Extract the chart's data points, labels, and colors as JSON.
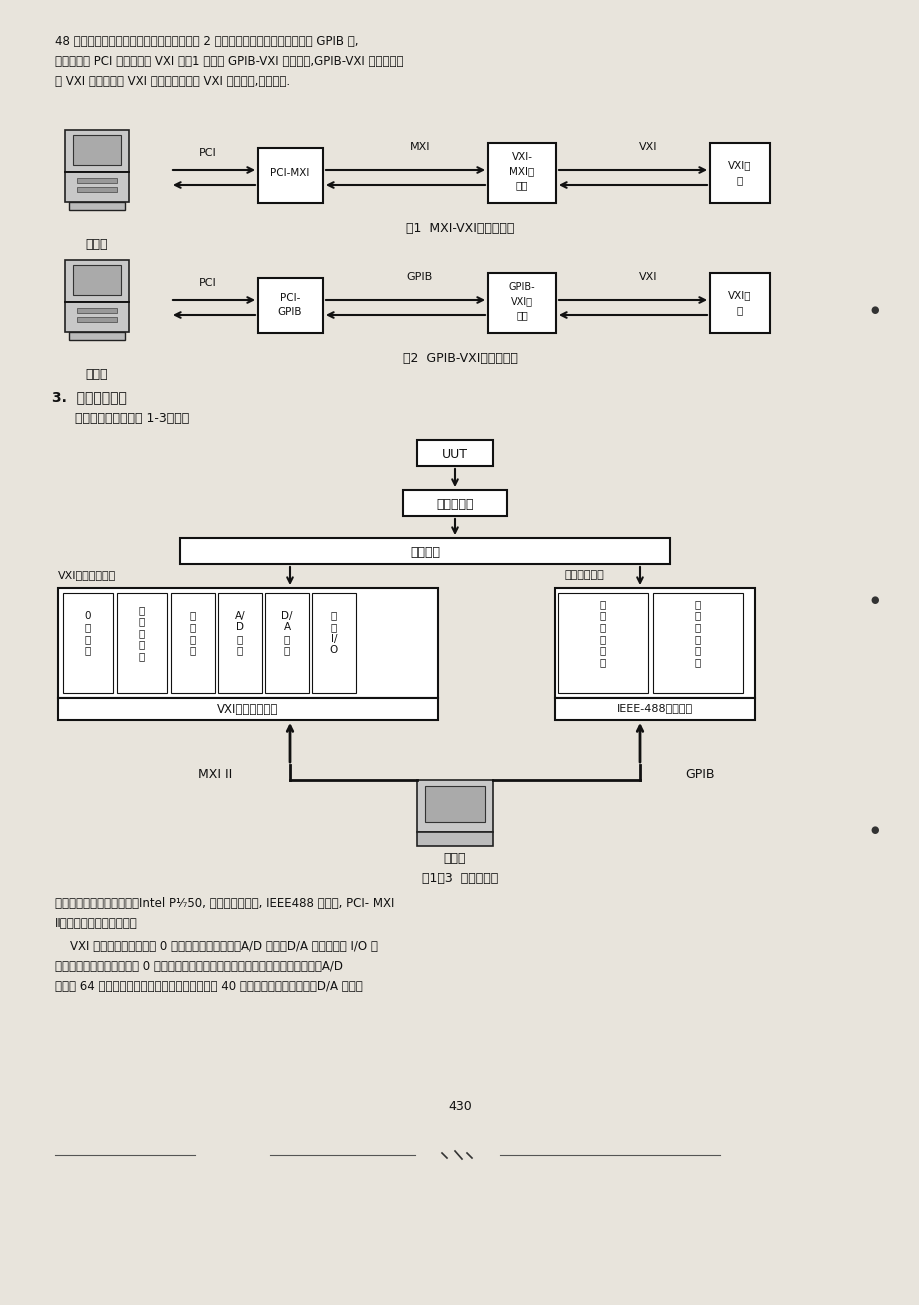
{
  "bg_color": "#e8e4dc",
  "page_width": 9.2,
  "page_height": 13.05,
  "intro_text_line1": "48 总线仪器如程控电源等，其基本结构如图 2 所示。它在计算机扩展槽中插入 GPIB 卡,",
  "intro_text_line2": "计算机通过 PCI 总线与位于 VXI 机符1 号槽的 GPIB-VXI 模块通信,GPIB-VXI 将信息转换",
  "intro_text_line3": "成 VXI 格式并通过 VXI 背板总线传输至 VXI 模块仪器,完成控制.",
  "fig1_caption": "图1  MXI-VXI方式示意图",
  "fig2_caption": "图2  GPIB-VXI方式示意图",
  "section3_title": "3.  系统硬件组成",
  "section3_sub": "本系统硬件结构如图 1-3所示：",
  "fig3_caption": "图1－3  系统硬件图",
  "bottom_text_line1": "系统所采用的计算机配置：Intel P⅐50, 配有网络适配器, IEEE488 总线卡, PCI- MXI",
  "bottom_text_line2": "Ⅱ接口卡，条型码阅读器。",
  "bottom_text_line3": "    VXI 总线仪器模块主要由 0 槽模块、数字万用表、A/D 模块、D/A 模块、数字 I/O 模",
  "bottom_text_line4": "块以及多路开关组成。其中 0 槽模块是一个特殊的模块，它主要用于管理其它模块。A/D",
  "bottom_text_line5": "模块为 64 通道多功能数据采集模块，它主要完成 40 路模拟信号的采集工作。D/A 模块为",
  "page_number": "430"
}
